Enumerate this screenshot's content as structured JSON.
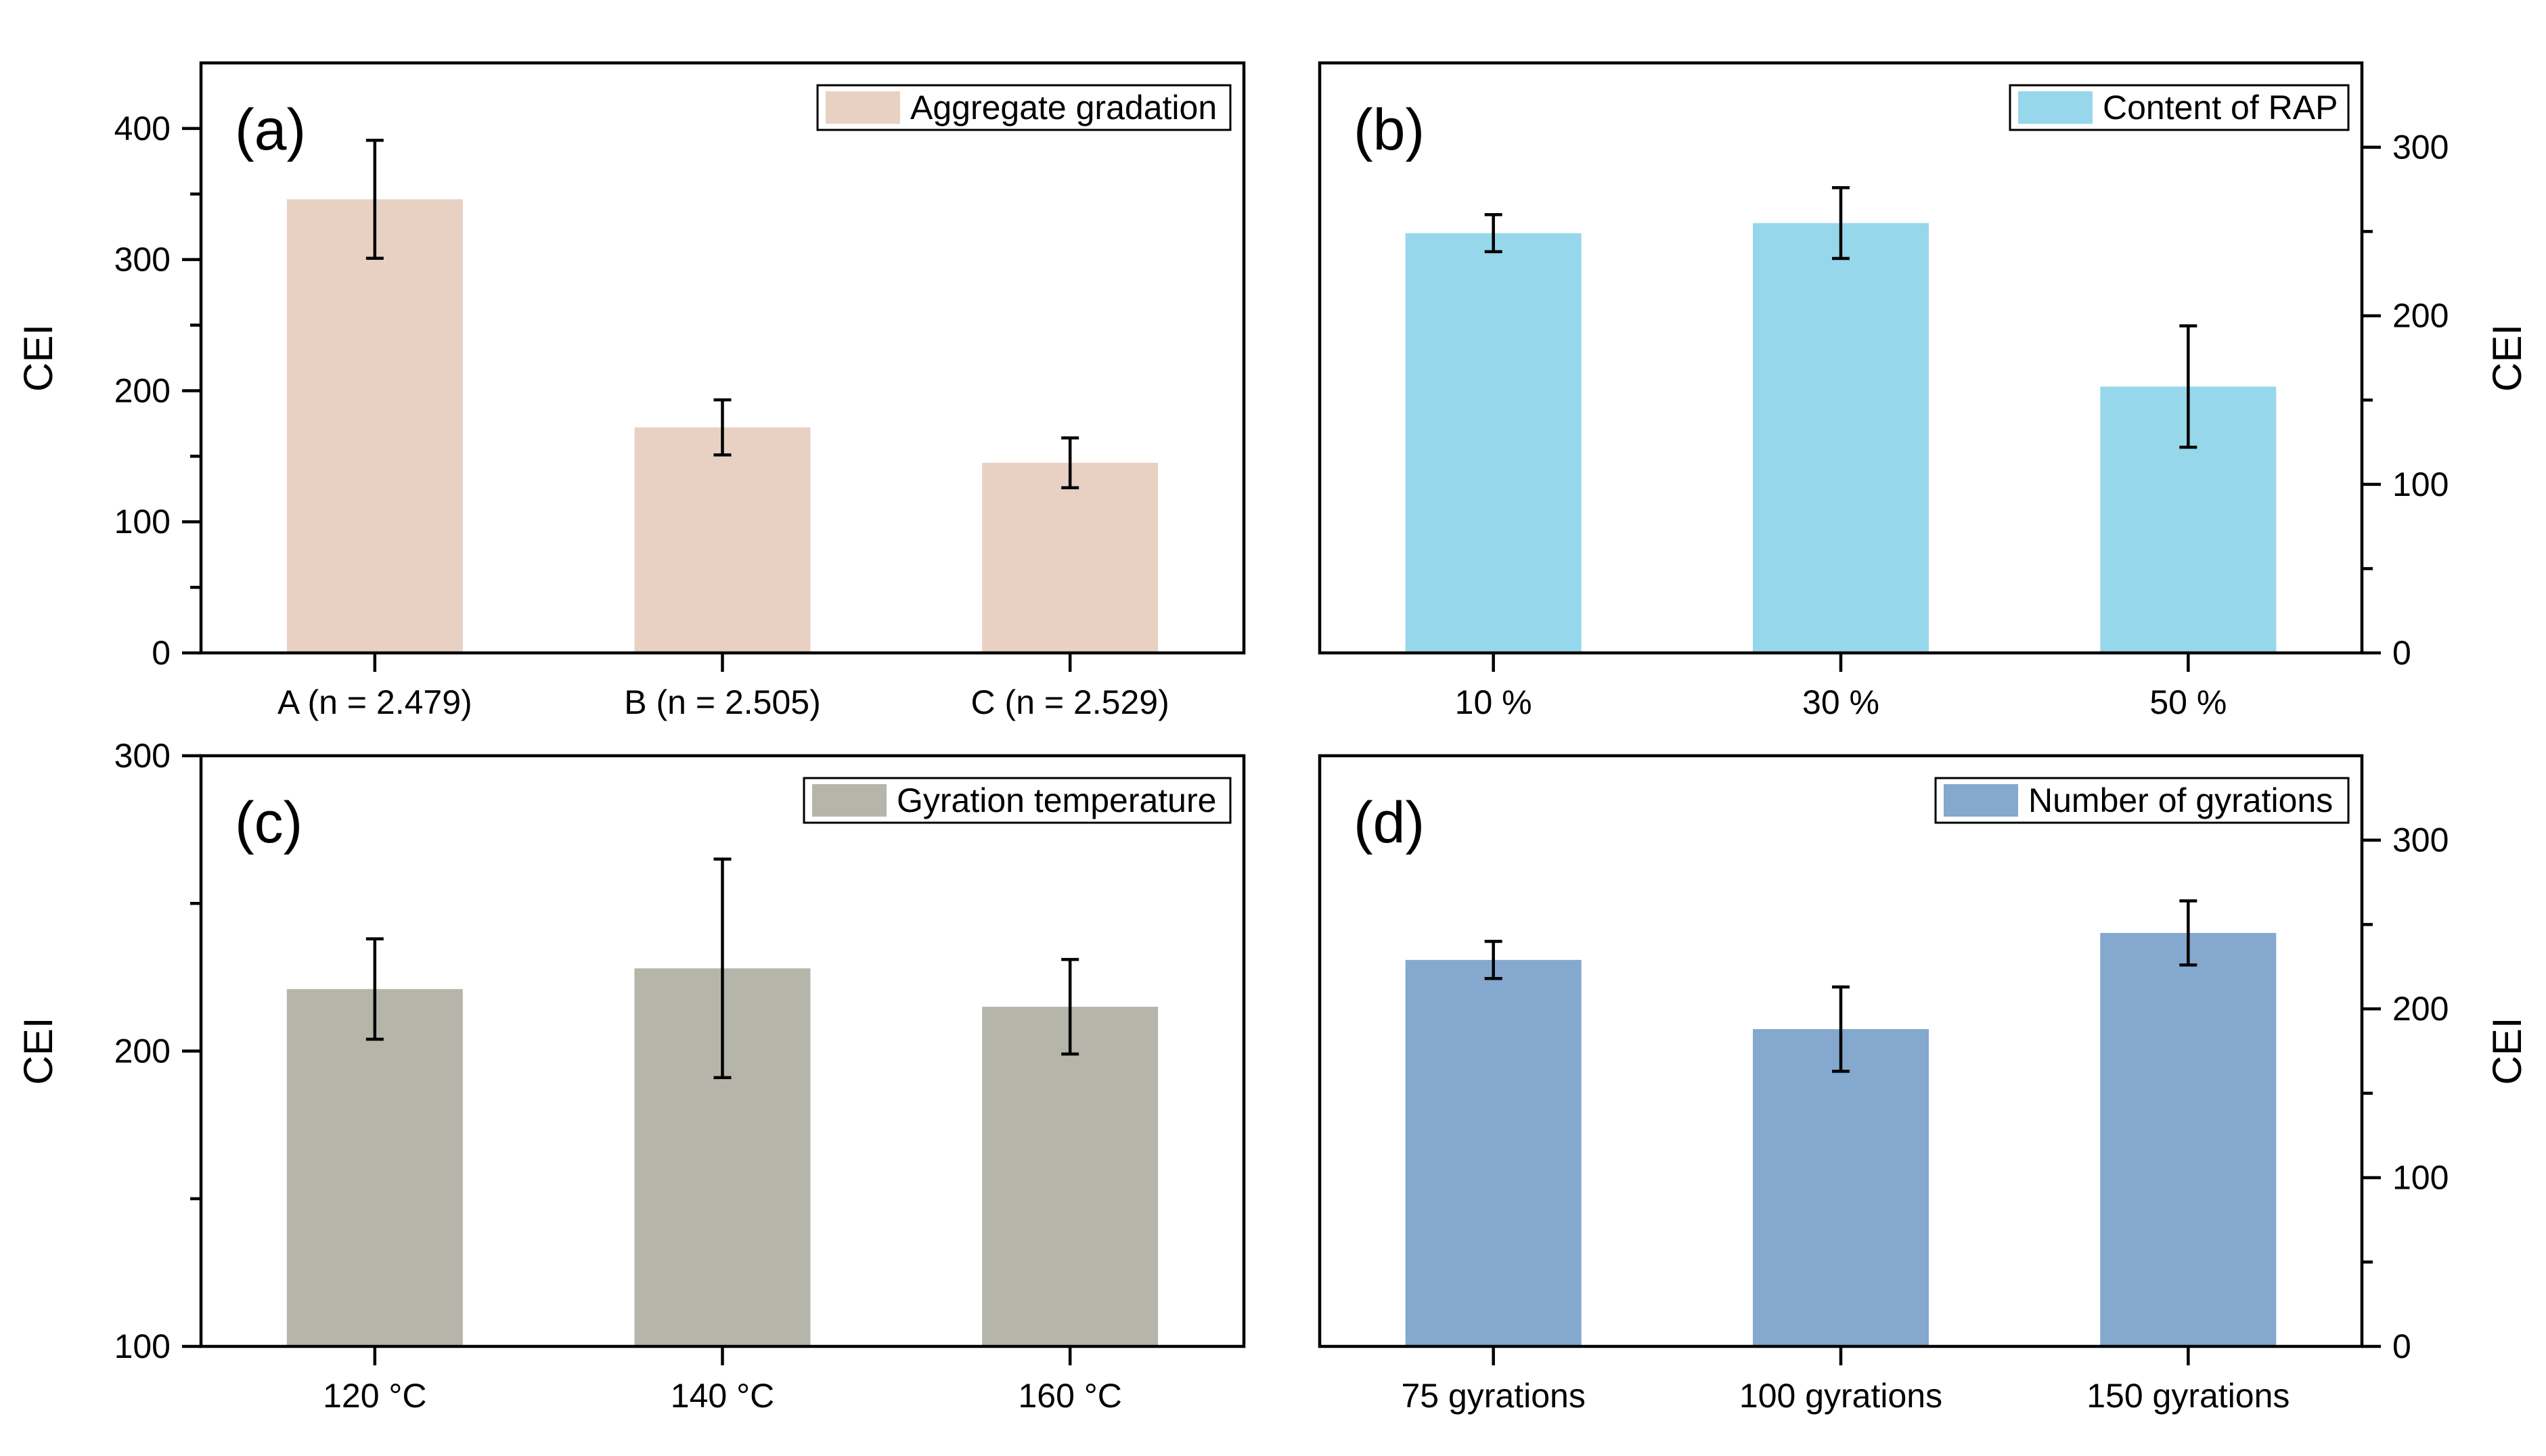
{
  "chart_data": [
    {
      "type": "bar",
      "panel_label": "(a)",
      "categories": [
        "A (n = 2.479)",
        "B (n = 2.505)",
        "C (n = 2.529)"
      ],
      "series": [
        {
          "name": "Aggregate gradation",
          "values": [
            346,
            172,
            145
          ],
          "error": [
            45,
            21,
            19
          ]
        }
      ],
      "color": "#E8D1C3",
      "ylabel": "CEI",
      "ylim": [
        0,
        450
      ],
      "yticks": [
        0,
        100,
        200,
        300,
        400
      ],
      "y_axis_side": "left",
      "legend_position": "top-right"
    },
    {
      "type": "bar",
      "panel_label": "(b)",
      "categories": [
        "10 %",
        "30 %",
        "50 %"
      ],
      "series": [
        {
          "name": "Content of RAP",
          "values": [
            249,
            255,
            158
          ],
          "error": [
            11,
            21,
            36
          ]
        }
      ],
      "color": "#97D7EB",
      "ylabel": "CEI",
      "ylim": [
        0,
        350
      ],
      "yticks": [
        0,
        100,
        200,
        300
      ],
      "y_axis_side": "right",
      "legend_position": "top-right"
    },
    {
      "type": "bar",
      "panel_label": "(c)",
      "categories": [
        "120 °C",
        "140 °C",
        "160 °C"
      ],
      "series": [
        {
          "name": "Gyration temperature",
          "values": [
            221,
            228,
            215
          ],
          "error": [
            17,
            37,
            16
          ]
        }
      ],
      "color": "#B5B5AA",
      "ylabel": "CEI",
      "ylim": [
        100,
        300
      ],
      "yticks": [
        100,
        200,
        300
      ],
      "y_axis_side": "left",
      "legend_position": "top-right"
    },
    {
      "type": "bar",
      "panel_label": "(d)",
      "categories": [
        "75 gyrations",
        "100 gyrations",
        "150 gyrations"
      ],
      "series": [
        {
          "name": "Number of gyrations",
          "values": [
            229,
            188,
            245
          ],
          "error": [
            11,
            25,
            19
          ]
        }
      ],
      "color": "#84A8CE",
      "ylabel": "CEI",
      "ylim": [
        0,
        350
      ],
      "yticks": [
        0,
        100,
        200,
        300
      ],
      "y_axis_side": "right",
      "legend_position": "top-right"
    }
  ]
}
